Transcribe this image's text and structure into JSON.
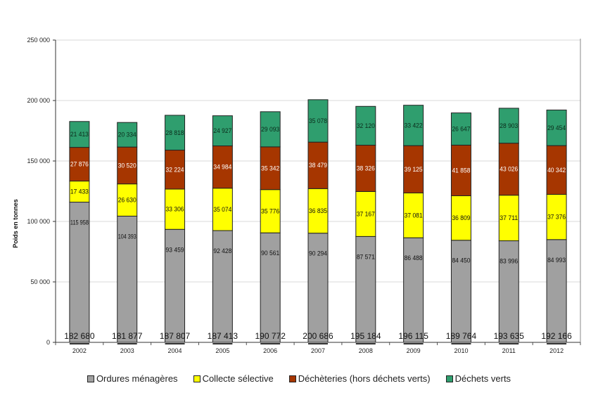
{
  "chart_data": {
    "type": "bar",
    "stacked": true,
    "title": "",
    "xlabel": "",
    "ylabel": "Poids en tonnes",
    "ylim": [
      0,
      250000
    ],
    "yticks": [
      0,
      50000,
      100000,
      150000,
      200000,
      250000
    ],
    "ytick_labels": [
      "0",
      "50 000",
      "100 000",
      "150 000",
      "200 000",
      "250 000"
    ],
    "grid": true,
    "legend_position": "bottom",
    "categories": [
      "2002",
      "2003",
      "2004",
      "2005",
      "2006",
      "2007",
      "2008",
      "2009",
      "2010",
      "2011",
      "2012"
    ],
    "series": [
      {
        "name": "Ordures ménagères",
        "color": "#a0a0a0",
        "label_color": "#111111",
        "values": [
          115958,
          104393,
          93459,
          92428,
          90561,
          90294,
          87571,
          86488,
          84450,
          83996,
          84993
        ],
        "labels": [
          "115 958",
          "104 393",
          "93 459",
          "92 428",
          "90 561",
          "90 294",
          "87 571",
          "86 488",
          "84 450",
          "83 996",
          "84 993"
        ]
      },
      {
        "name": "Collecte sélective",
        "color": "#ffff00",
        "label_color": "#111111",
        "values": [
          17433,
          26630,
          33306,
          35074,
          35776,
          36835,
          37167,
          37081,
          36809,
          37711,
          37376
        ],
        "labels": [
          "17 433",
          "26 630",
          "33 306",
          "35 074",
          "35 776",
          "36 835",
          "37 167",
          "37 081",
          "36 809",
          "37 711",
          "37 376"
        ]
      },
      {
        "name": "Déchèteries (hors déchets verts)",
        "color": "#a63600",
        "label_color": "#ffffff",
        "values": [
          27876,
          30520,
          32224,
          34984,
          35342,
          38479,
          38326,
          39125,
          41858,
          43026,
          40342
        ],
        "labels": [
          "27 876",
          "30 520",
          "32 224",
          "34 984",
          "35 342",
          "38 479",
          "38 326",
          "39 125",
          "41 858",
          "43 026",
          "40 342"
        ]
      },
      {
        "name": "Déchets verts",
        "color": "#2f9e6e",
        "label_color": "#0b2a1a",
        "values": [
          21413,
          20334,
          28818,
          24927,
          29093,
          35078,
          32120,
          33422,
          26647,
          28903,
          29454
        ],
        "labels": [
          "21 413",
          "20 334",
          "28 818",
          "24 927",
          "29 093",
          "35 078",
          "32 120",
          "33 422",
          "26 647",
          "28 903",
          "29 454"
        ]
      }
    ],
    "totals": [
      182680,
      181877,
      187807,
      187413,
      190772,
      200686,
      195184,
      196115,
      189764,
      193635,
      192166
    ],
    "total_labels": [
      "182 680",
      "181 877",
      "187 807",
      "187 413",
      "190 772",
      "200 686",
      "195 184",
      "196 115",
      "189 764",
      "193 635",
      "192 166"
    ]
  }
}
